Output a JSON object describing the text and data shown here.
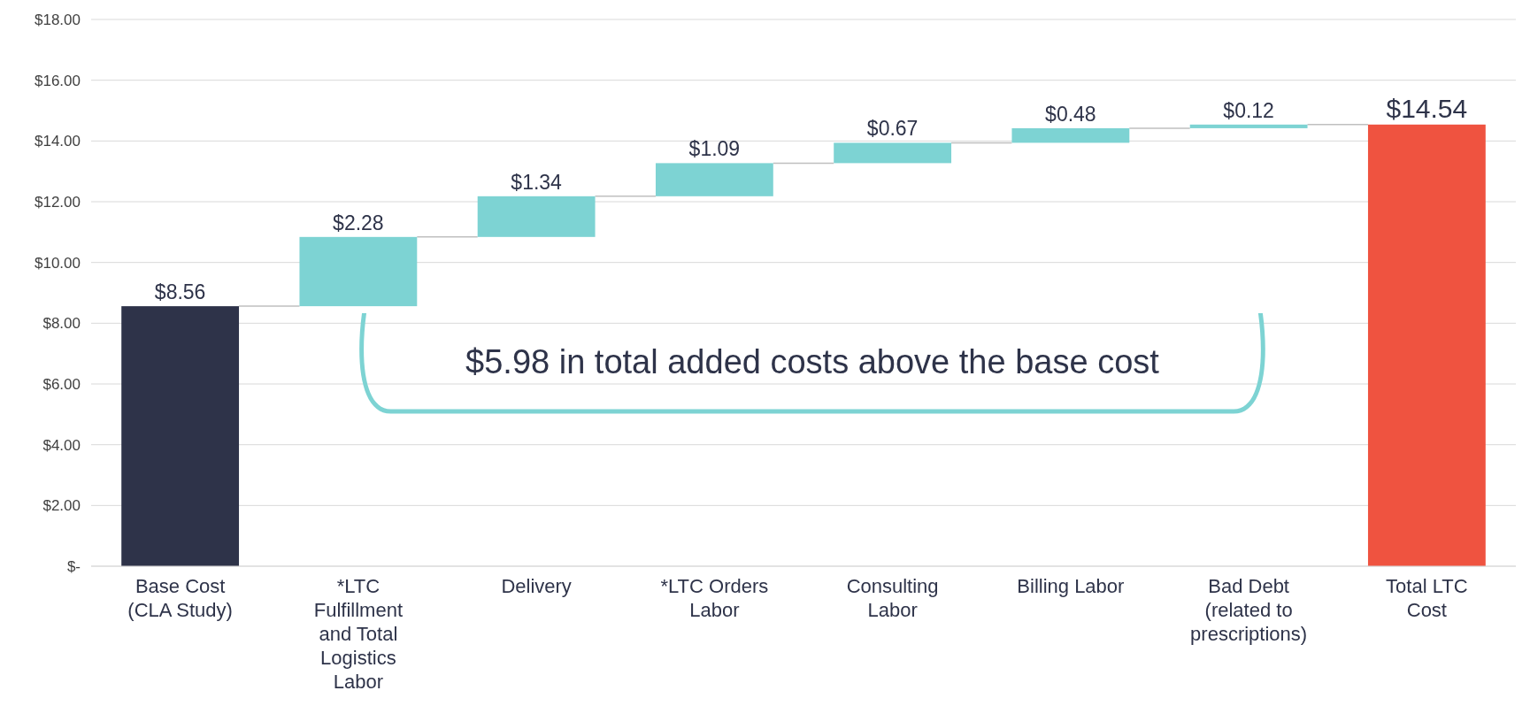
{
  "chart_data": {
    "type": "bar",
    "categories": [
      "Base Cost (CLA Study)",
      "*LTC Fulfillment and Total Logistics Labor",
      "Delivery",
      "*LTC Orders Labor",
      "Consulting Labor",
      "Billing Labor",
      "Bad Debt (related to prescriptions)",
      "Total LTC Cost"
    ],
    "values": [
      8.56,
      2.28,
      1.34,
      1.09,
      0.67,
      0.48,
      0.12,
      14.54
    ],
    "base": [
      0,
      8.56,
      10.84,
      12.18,
      13.27,
      13.94,
      14.42,
      0
    ],
    "colors": [
      "#2e3349",
      "#7dd3d3",
      "#7dd3d3",
      "#7dd3d3",
      "#7dd3d3",
      "#7dd3d3",
      "#7dd3d3",
      "#ef5340"
    ],
    "value_labels": [
      "$8.56",
      "$2.28",
      "$1.34",
      "$1.09",
      "$0.67",
      "$0.48",
      "$0.12",
      "$14.54"
    ],
    "ylim": [
      0,
      18
    ],
    "yticks": [
      {
        "value": 0,
        "label": "$-"
      },
      {
        "value": 2,
        "label": "$2.00"
      },
      {
        "value": 4,
        "label": "$4.00"
      },
      {
        "value": 6,
        "label": "$6.00"
      },
      {
        "value": 8,
        "label": "$8.00"
      },
      {
        "value": 10,
        "label": "$10.00"
      },
      {
        "value": 12,
        "label": "$12.00"
      },
      {
        "value": 14,
        "label": "$14.00"
      },
      {
        "value": 16,
        "label": "$16.00"
      },
      {
        "value": 18,
        "label": "$18.00"
      }
    ],
    "grid": "y",
    "annotations": [
      "$5.98 in total added costs above the base cost"
    ]
  }
}
